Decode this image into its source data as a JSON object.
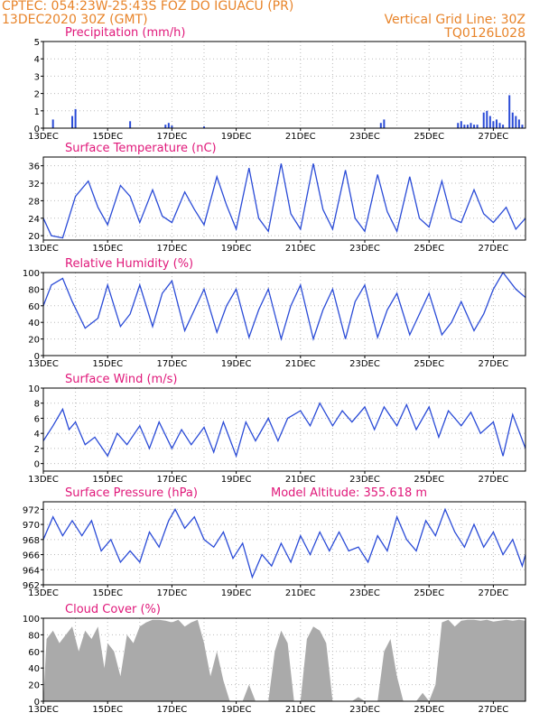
{
  "header": {
    "line1": "CPTEC:   054:23W-25:43S  FOZ DO IGUACU (PR)",
    "line2_left": "13DEC2020 30Z (GMT)",
    "line2_right": "Vertical Grid Line: 30Z",
    "line3_right": "TQ0126L028"
  },
  "colors": {
    "header": "#e8842a",
    "title": "#e0187a",
    "line": "#2a4bd7",
    "bar": "#2a4bd7",
    "cloud": "#aaaaaa"
  },
  "x_axis": {
    "tick_labels": [
      "13DEC",
      "15DEC",
      "17DEC",
      "19DEC",
      "21DEC",
      "23DEC",
      "25DEC",
      "27DEC"
    ],
    "tick_days": [
      13,
      15,
      17,
      19,
      21,
      23,
      25,
      27
    ],
    "range_days": [
      13,
      28
    ]
  },
  "chart_data": [
    {
      "type": "bar",
      "title": "Precipitation  (mm/h)",
      "ylim": [
        0,
        5
      ],
      "yticks": [
        0,
        1,
        2,
        3,
        4,
        5
      ],
      "grid": true,
      "series": [
        {
          "x": [
            13.3,
            13.9,
            14.0,
            15.7,
            16.8,
            16.9,
            17.0,
            18.0,
            23.5,
            23.6,
            25.9,
            26.0,
            26.1,
            26.2,
            26.3,
            26.4,
            26.5,
            26.7,
            26.8,
            26.9,
            27.0,
            27.1,
            27.2,
            27.3,
            27.5,
            27.6,
            27.7,
            27.8,
            27.9
          ],
          "values": [
            0.5,
            0.7,
            1.1,
            0.4,
            0.2,
            0.3,
            0.15,
            0.1,
            0.3,
            0.5,
            0.3,
            0.4,
            0.2,
            0.2,
            0.3,
            0.2,
            0.2,
            0.9,
            1.0,
            0.7,
            0.4,
            0.5,
            0.3,
            0.2,
            1.9,
            0.9,
            0.7,
            0.5,
            0.2
          ]
        }
      ]
    },
    {
      "type": "line",
      "title": "Surface Temperature (nC)",
      "ylim": [
        19,
        38
      ],
      "yticks": [
        20,
        24,
        28,
        32,
        36
      ],
      "grid": true,
      "series": [
        {
          "x": [
            13.0,
            13.25,
            13.6,
            14.0,
            14.4,
            14.7,
            15.0,
            15.4,
            15.7,
            16.0,
            16.4,
            16.7,
            17.0,
            17.4,
            17.7,
            18.0,
            18.4,
            18.7,
            19.0,
            19.4,
            19.7,
            20.0,
            20.4,
            20.7,
            21.0,
            21.4,
            21.7,
            22.0,
            22.4,
            22.7,
            23.0,
            23.4,
            23.7,
            24.0,
            24.4,
            24.7,
            25.0,
            25.4,
            25.7,
            26.0,
            26.4,
            26.7,
            27.0,
            27.4,
            27.7,
            28.0
          ],
          "values": [
            24,
            20,
            19.5,
            29,
            32.5,
            26.5,
            22.5,
            31.5,
            29,
            23,
            30.5,
            24.5,
            23,
            30,
            26,
            22.5,
            33.5,
            27,
            21.5,
            35.5,
            24,
            21,
            36.5,
            25,
            21.5,
            36.5,
            26,
            21.5,
            35,
            24,
            21,
            34,
            25.5,
            21,
            33.5,
            24,
            22,
            32.5,
            24,
            23,
            30.5,
            25,
            23,
            26.5,
            21.5,
            24
          ]
        }
      ]
    },
    {
      "type": "line",
      "title": "Relative Humidity  (%)",
      "ylim": [
        0,
        100
      ],
      "yticks": [
        0,
        20,
        40,
        60,
        80,
        100
      ],
      "grid": true,
      "series": [
        {
          "x": [
            13.0,
            13.25,
            13.6,
            13.9,
            14.3,
            14.7,
            15.0,
            15.4,
            15.7,
            16.0,
            16.4,
            16.7,
            17.0,
            17.4,
            17.7,
            18.0,
            18.4,
            18.7,
            19.0,
            19.4,
            19.7,
            20.0,
            20.4,
            20.7,
            21.0,
            21.4,
            21.7,
            22.0,
            22.4,
            22.7,
            23.0,
            23.4,
            23.7,
            24.0,
            24.4,
            24.7,
            25.0,
            25.4,
            25.7,
            26.0,
            26.4,
            26.7,
            27.0,
            27.3,
            27.7,
            28.0
          ],
          "values": [
            60,
            85,
            93,
            65,
            33,
            45,
            85,
            35,
            50,
            85,
            35,
            75,
            90,
            30,
            55,
            80,
            28,
            60,
            80,
            22,
            55,
            80,
            20,
            60,
            85,
            20,
            55,
            80,
            20,
            65,
            85,
            22,
            55,
            75,
            25,
            50,
            75,
            25,
            40,
            65,
            30,
            50,
            80,
            100,
            80,
            70
          ]
        }
      ]
    },
    {
      "type": "line",
      "title": "Surface Wind  (m/s)",
      "ylim": [
        -1,
        10
      ],
      "yticks": [
        0,
        2,
        4,
        6,
        8,
        10
      ],
      "grid": true,
      "series": [
        {
          "x": [
            13.0,
            13.3,
            13.6,
            13.8,
            14.0,
            14.3,
            14.6,
            15.0,
            15.3,
            15.6,
            16.0,
            16.3,
            16.6,
            17.0,
            17.3,
            17.6,
            18.0,
            18.3,
            18.6,
            19.0,
            19.3,
            19.6,
            20.0,
            20.3,
            20.6,
            21.0,
            21.3,
            21.6,
            22.0,
            22.3,
            22.6,
            23.0,
            23.3,
            23.6,
            24.0,
            24.3,
            24.6,
            25.0,
            25.3,
            25.6,
            26.0,
            26.3,
            26.6,
            27.0,
            27.3,
            27.6,
            28.0
          ],
          "values": [
            3,
            5,
            7.2,
            4.5,
            5.5,
            2.5,
            3.5,
            1,
            4,
            2.5,
            5,
            2,
            5.5,
            2,
            4.5,
            2.5,
            4.8,
            1.5,
            5.5,
            1,
            5.5,
            3,
            6,
            3,
            6,
            7,
            5,
            8,
            5,
            7,
            5.5,
            7.5,
            4.5,
            7.5,
            5,
            7.8,
            4.5,
            7.5,
            3.5,
            7,
            5,
            6.8,
            4,
            5.5,
            1,
            6.5,
            2
          ]
        }
      ]
    },
    {
      "type": "line",
      "title": "Surface Pressure (hPa)",
      "annotation": "Model Altitude: 355.618  m",
      "ylim": [
        962,
        973
      ],
      "yticks": [
        962,
        964,
        966,
        968,
        970,
        972
      ],
      "grid": true,
      "series": [
        {
          "x": [
            13.0,
            13.3,
            13.6,
            13.9,
            14.2,
            14.5,
            14.8,
            15.1,
            15.4,
            15.7,
            16.0,
            16.3,
            16.6,
            16.9,
            17.1,
            17.4,
            17.7,
            18.0,
            18.3,
            18.6,
            18.9,
            19.2,
            19.5,
            19.8,
            20.1,
            20.4,
            20.7,
            21.0,
            21.3,
            21.6,
            21.9,
            22.2,
            22.5,
            22.8,
            23.1,
            23.4,
            23.7,
            24.0,
            24.3,
            24.6,
            24.9,
            25.2,
            25.5,
            25.8,
            26.1,
            26.4,
            26.7,
            27.0,
            27.3,
            27.6,
            27.9,
            28.0
          ],
          "values": [
            968,
            971,
            968.5,
            970.5,
            968.5,
            970.5,
            966.5,
            968,
            965,
            966.5,
            965,
            969,
            967,
            970.5,
            972,
            969.5,
            971,
            968,
            967,
            969,
            965.5,
            967.5,
            963,
            966,
            964.5,
            967.5,
            965,
            968.5,
            966,
            969,
            966.5,
            969,
            966.5,
            967,
            965,
            968.5,
            966.5,
            971,
            968,
            966.5,
            970.5,
            968.5,
            972,
            969,
            967,
            970,
            967,
            969,
            966,
            968,
            964.5,
            966
          ]
        }
      ]
    },
    {
      "type": "area",
      "title": "Cloud Cover  (%)",
      "ylim": [
        0,
        100
      ],
      "yticks": [
        0,
        20,
        40,
        60,
        80,
        100
      ],
      "grid": true,
      "series": [
        {
          "x": [
            13.0,
            13.1,
            13.3,
            13.5,
            13.7,
            13.9,
            14.1,
            14.3,
            14.5,
            14.7,
            14.9,
            15.0,
            15.2,
            15.4,
            15.6,
            15.8,
            16.0,
            16.2,
            16.4,
            16.6,
            16.8,
            17.0,
            17.2,
            17.4,
            17.6,
            17.8,
            18.0,
            18.2,
            18.4,
            18.6,
            18.8,
            19.0,
            19.2,
            19.4,
            19.6,
            19.8,
            20.0,
            20.2,
            20.4,
            20.6,
            20.8,
            21.0,
            21.2,
            21.4,
            21.6,
            21.8,
            22.0,
            22.2,
            22.4,
            22.6,
            22.8,
            23.0,
            23.2,
            23.4,
            23.6,
            23.8,
            24.0,
            24.2,
            24.4,
            24.6,
            24.8,
            25.0,
            25.2,
            25.4,
            25.6,
            25.8,
            26.0,
            26.2,
            26.4,
            26.6,
            26.8,
            27.0,
            27.2,
            27.4,
            27.6,
            27.8,
            28.0
          ],
          "values": [
            0,
            75,
            85,
            70,
            80,
            90,
            60,
            85,
            75,
            90,
            40,
            70,
            60,
            30,
            80,
            70,
            90,
            95,
            98,
            98,
            97,
            95,
            98,
            90,
            95,
            98,
            70,
            30,
            60,
            25,
            0,
            0,
            0,
            20,
            0,
            0,
            0,
            60,
            85,
            70,
            0,
            0,
            75,
            90,
            85,
            70,
            0,
            0,
            0,
            0,
            5,
            0,
            0,
            0,
            60,
            75,
            30,
            0,
            0,
            0,
            10,
            0,
            20,
            95,
            98,
            90,
            97,
            98,
            98,
            97,
            98,
            96,
            97,
            98,
            97,
            98,
            97
          ]
        }
      ]
    }
  ]
}
